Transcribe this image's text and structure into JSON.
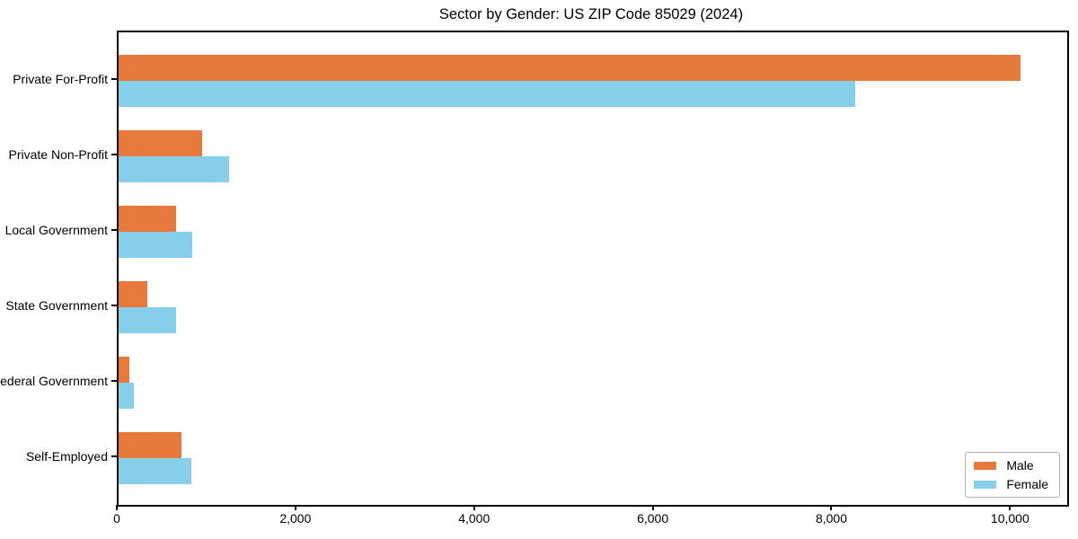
{
  "colors": {
    "background": "#ffffff",
    "axis": "#000000",
    "legend_border": "#b3b3b3",
    "male": "#e8793d",
    "female": "#87ceeb"
  },
  "chart_data": {
    "type": "bar",
    "orientation": "horizontal",
    "title": "Sector by Gender: US ZIP Code 85029 (2024)",
    "xlabel": "",
    "ylabel": "",
    "grid": false,
    "categories": [
      "Private For-Profit",
      "Private Non-Profit",
      "Local Government",
      "State Government",
      "Federal Government",
      "Self-Employed"
    ],
    "series": [
      {
        "name": "Male",
        "color": "#e8793d",
        "values": [
          10100,
          935,
          645,
          320,
          120,
          705
        ]
      },
      {
        "name": "Female",
        "color": "#87ceeb",
        "values": [
          8250,
          1240,
          825,
          645,
          170,
          815
        ]
      }
    ],
    "xlim": [
      0,
      10620
    ],
    "xticks": [
      {
        "value": 0,
        "label": "0"
      },
      {
        "value": 2000,
        "label": "2,000"
      },
      {
        "value": 4000,
        "label": "4,000"
      },
      {
        "value": 6000,
        "label": "6,000"
      },
      {
        "value": 8000,
        "label": "8,000"
      },
      {
        "value": 10000,
        "label": "10,000"
      }
    ],
    "legend": {
      "position": "lower right",
      "entries": [
        "Male",
        "Female"
      ]
    }
  }
}
